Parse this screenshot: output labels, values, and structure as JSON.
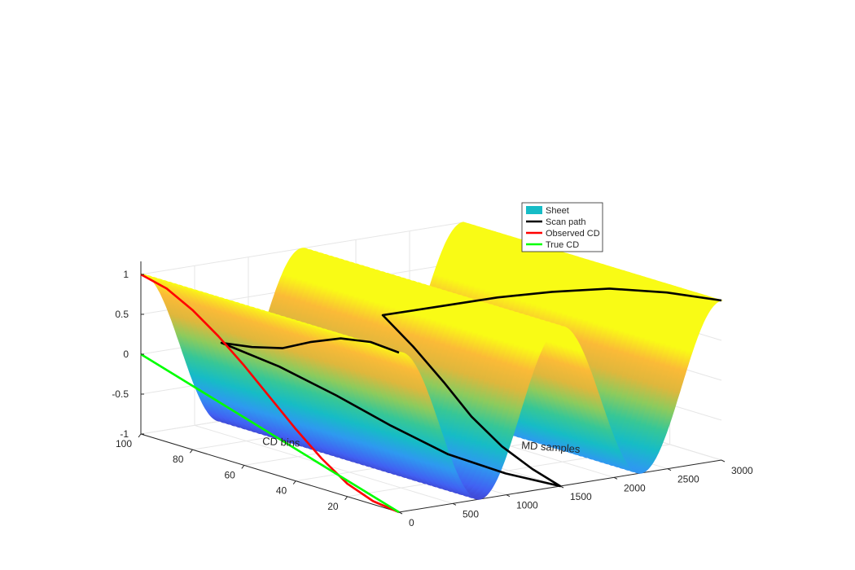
{
  "chart_data": {
    "type": "surface",
    "title": "",
    "surface": {
      "function": "z = cos(2*pi*md/1500)",
      "md_range": [
        0,
        3000
      ],
      "cd_range": [
        0,
        100
      ],
      "z_range": [
        -1,
        1
      ],
      "colormap": [
        "#3e26a8",
        "#4160f2",
        "#2e99f0",
        "#16bcc6",
        "#37c796",
        "#8ccb5d",
        "#dfb73c",
        "#fbba37",
        "#f9fb15"
      ]
    },
    "axes": {
      "x": {
        "label": "MD samples",
        "ticks": [
          0,
          500,
          1000,
          1500,
          2000,
          2500,
          3000
        ],
        "lim": [
          0,
          3000
        ]
      },
      "y": {
        "label": "CD bins",
        "ticks": [
          20,
          40,
          60,
          80,
          100
        ],
        "lim": [
          0,
          100
        ]
      },
      "z": {
        "label": "",
        "ticks": [
          -1,
          -0.5,
          0,
          0.5,
          1
        ],
        "tick_labels": [
          "-1",
          "-0.5",
          "0",
          "0.5",
          "1"
        ],
        "lim": [
          -1,
          1
        ]
      },
      "grid": true
    },
    "series": [
      {
        "name": "Sheet",
        "kind": "surface",
        "color": "#16bcc6"
      },
      {
        "name": "Scan path",
        "kind": "line3d",
        "color": "#000000",
        "points": [
          [
            0,
            0,
            1
          ],
          [
            120,
            16,
            0.95
          ],
          [
            250,
            33,
            0.8
          ],
          [
            375,
            50,
            0.56
          ],
          [
            500,
            66,
            0.3
          ],
          [
            625,
            83,
            0.12
          ],
          [
            750,
            100,
            -0.02
          ],
          [
            880,
            83,
            -0.18
          ],
          [
            1000,
            66,
            -0.4
          ],
          [
            1125,
            50,
            -0.65
          ],
          [
            1250,
            33,
            -0.87
          ],
          [
            1375,
            16,
            -0.97
          ],
          [
            1500,
            0,
            -1
          ],
          [
            1625,
            16,
            -0.97
          ],
          [
            1750,
            33,
            -0.88
          ],
          [
            1875,
            50,
            -0.7
          ],
          [
            2000,
            66,
            -0.45
          ],
          [
            2125,
            83,
            -0.2
          ],
          [
            2250,
            100,
            0.0
          ],
          [
            2375,
            83,
            0.25
          ],
          [
            2500,
            66,
            0.5
          ],
          [
            2625,
            50,
            0.7
          ],
          [
            2750,
            33,
            0.88
          ],
          [
            2875,
            16,
            0.97
          ],
          [
            3000,
            0,
            1
          ]
        ]
      },
      {
        "name": "Observed CD",
        "kind": "line3d",
        "color": "#ff0000",
        "points": [
          [
            0,
            0,
            -1
          ],
          [
            0,
            10,
            -0.96
          ],
          [
            0,
            20,
            -0.84
          ],
          [
            0,
            30,
            -0.62
          ],
          [
            0,
            40,
            -0.35
          ],
          [
            0,
            50,
            -0.05
          ],
          [
            0,
            60,
            0.25
          ],
          [
            0,
            70,
            0.52
          ],
          [
            0,
            80,
            0.75
          ],
          [
            0,
            90,
            0.92
          ],
          [
            0,
            100,
            1
          ]
        ]
      },
      {
        "name": "True CD",
        "kind": "line3d",
        "color": "#00ff00",
        "points": [
          [
            0,
            0,
            -1
          ],
          [
            0,
            100,
            0
          ]
        ]
      }
    ],
    "legend": {
      "placement": "upper-right",
      "entries": [
        "Sheet",
        "Scan path",
        "Observed CD",
        "True CD"
      ]
    }
  }
}
